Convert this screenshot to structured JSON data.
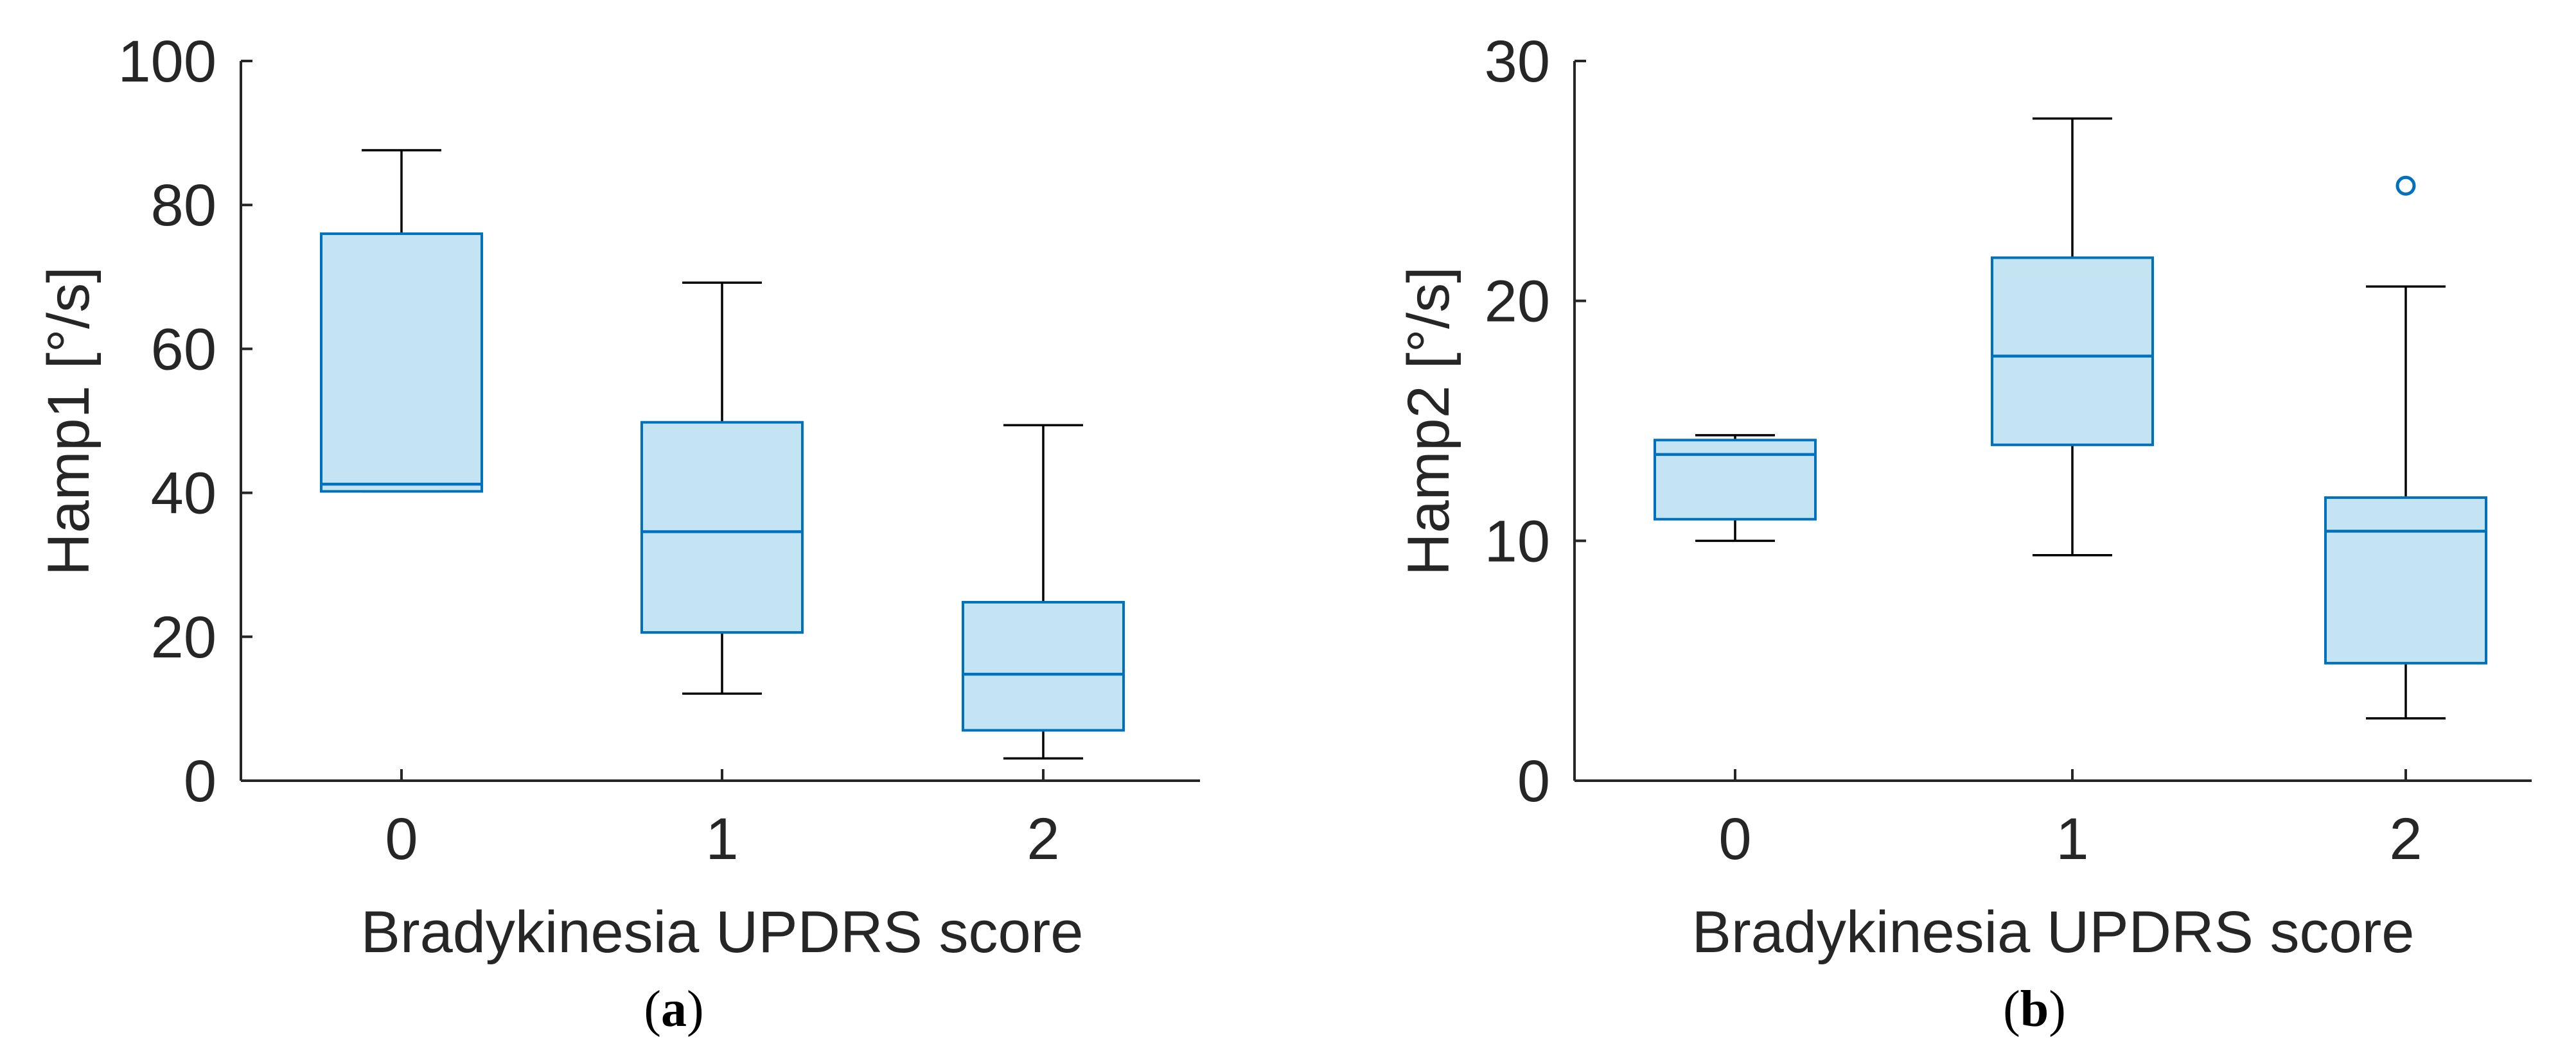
{
  "colors": {
    "box_fill": "#c4e3f3",
    "box_edge": "#0072bd",
    "whisker": "#000000",
    "axis": "#262626",
    "outlier": "#0072bd"
  },
  "chart_data": [
    {
      "type": "boxplot",
      "panel_label": "a",
      "xlabel": "Bradykinesia UPDRS score",
      "ylabel": "Hamp1 [°/s]",
      "categories": [
        "0",
        "1",
        "2"
      ],
      "ylim": [
        0,
        100
      ],
      "yticks": [
        0,
        20,
        40,
        60,
        80,
        100
      ],
      "boxes": [
        {
          "category": "0",
          "whisker_low": 40.2,
          "q1": 40.2,
          "median": 41.2,
          "q3": 76.0,
          "whisker_high": 87.6,
          "outliers": []
        },
        {
          "category": "1",
          "whisker_low": 12.1,
          "q1": 20.6,
          "median": 34.6,
          "q3": 49.8,
          "whisker_high": 69.2,
          "outliers": []
        },
        {
          "category": "2",
          "whisker_low": 3.1,
          "q1": 7.0,
          "median": 14.8,
          "q3": 24.8,
          "whisker_high": 49.4,
          "outliers": []
        }
      ]
    },
    {
      "type": "boxplot",
      "panel_label": "b",
      "xlabel": "Bradykinesia UPDRS score",
      "ylabel": "Hamp2 [°/s]",
      "categories": [
        "0",
        "1",
        "2"
      ],
      "ylim": [
        0,
        30
      ],
      "yticks": [
        0,
        10,
        20,
        30
      ],
      "boxes": [
        {
          "category": "0",
          "whisker_low": 10.0,
          "q1": 10.9,
          "median": 13.6,
          "q3": 14.2,
          "whisker_high": 14.4,
          "outliers": []
        },
        {
          "category": "1",
          "whisker_low": 9.4,
          "q1": 14.0,
          "median": 17.7,
          "q3": 21.8,
          "whisker_high": 27.6,
          "outliers": []
        },
        {
          "category": "2",
          "whisker_low": 2.6,
          "q1": 4.9,
          "median": 10.4,
          "q3": 11.8,
          "whisker_high": 20.6,
          "outliers": [
            24.8
          ]
        }
      ]
    }
  ]
}
